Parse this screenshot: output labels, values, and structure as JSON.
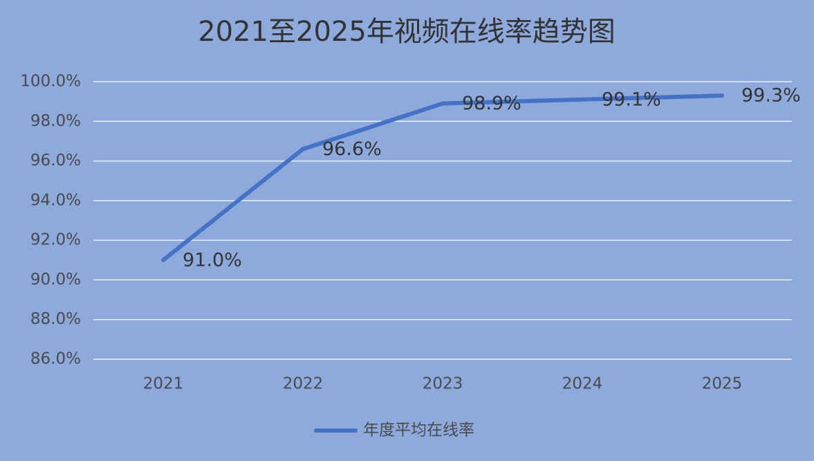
{
  "chart_data": {
    "type": "line",
    "title": "2021至2025年视频在线率趋势图",
    "categories": [
      "2021",
      "2022",
      "2023",
      "2024",
      "2025"
    ],
    "series": [
      {
        "name": "年度平均在线率",
        "color": "#4472c4",
        "values": [
          91.0,
          96.6,
          98.9,
          99.1,
          99.3
        ],
        "value_labels": [
          "91.0%",
          "96.6%",
          "98.9%",
          "99.1%",
          "99.3%"
        ]
      }
    ],
    "ylim": [
      86,
      100
    ],
    "yticks": [
      {
        "value": 86,
        "label": "86.0%"
      },
      {
        "value": 88,
        "label": "88.0%"
      },
      {
        "value": 90,
        "label": "90.0%"
      },
      {
        "value": 92,
        "label": "92.0%"
      },
      {
        "value": 94,
        "label": "94.0%"
      },
      {
        "value": 96,
        "label": "96.0%"
      },
      {
        "value": 98,
        "label": "98.0%"
      },
      {
        "value": 100,
        "label": "100.0%"
      }
    ],
    "grid": true,
    "legend": "bottom"
  }
}
